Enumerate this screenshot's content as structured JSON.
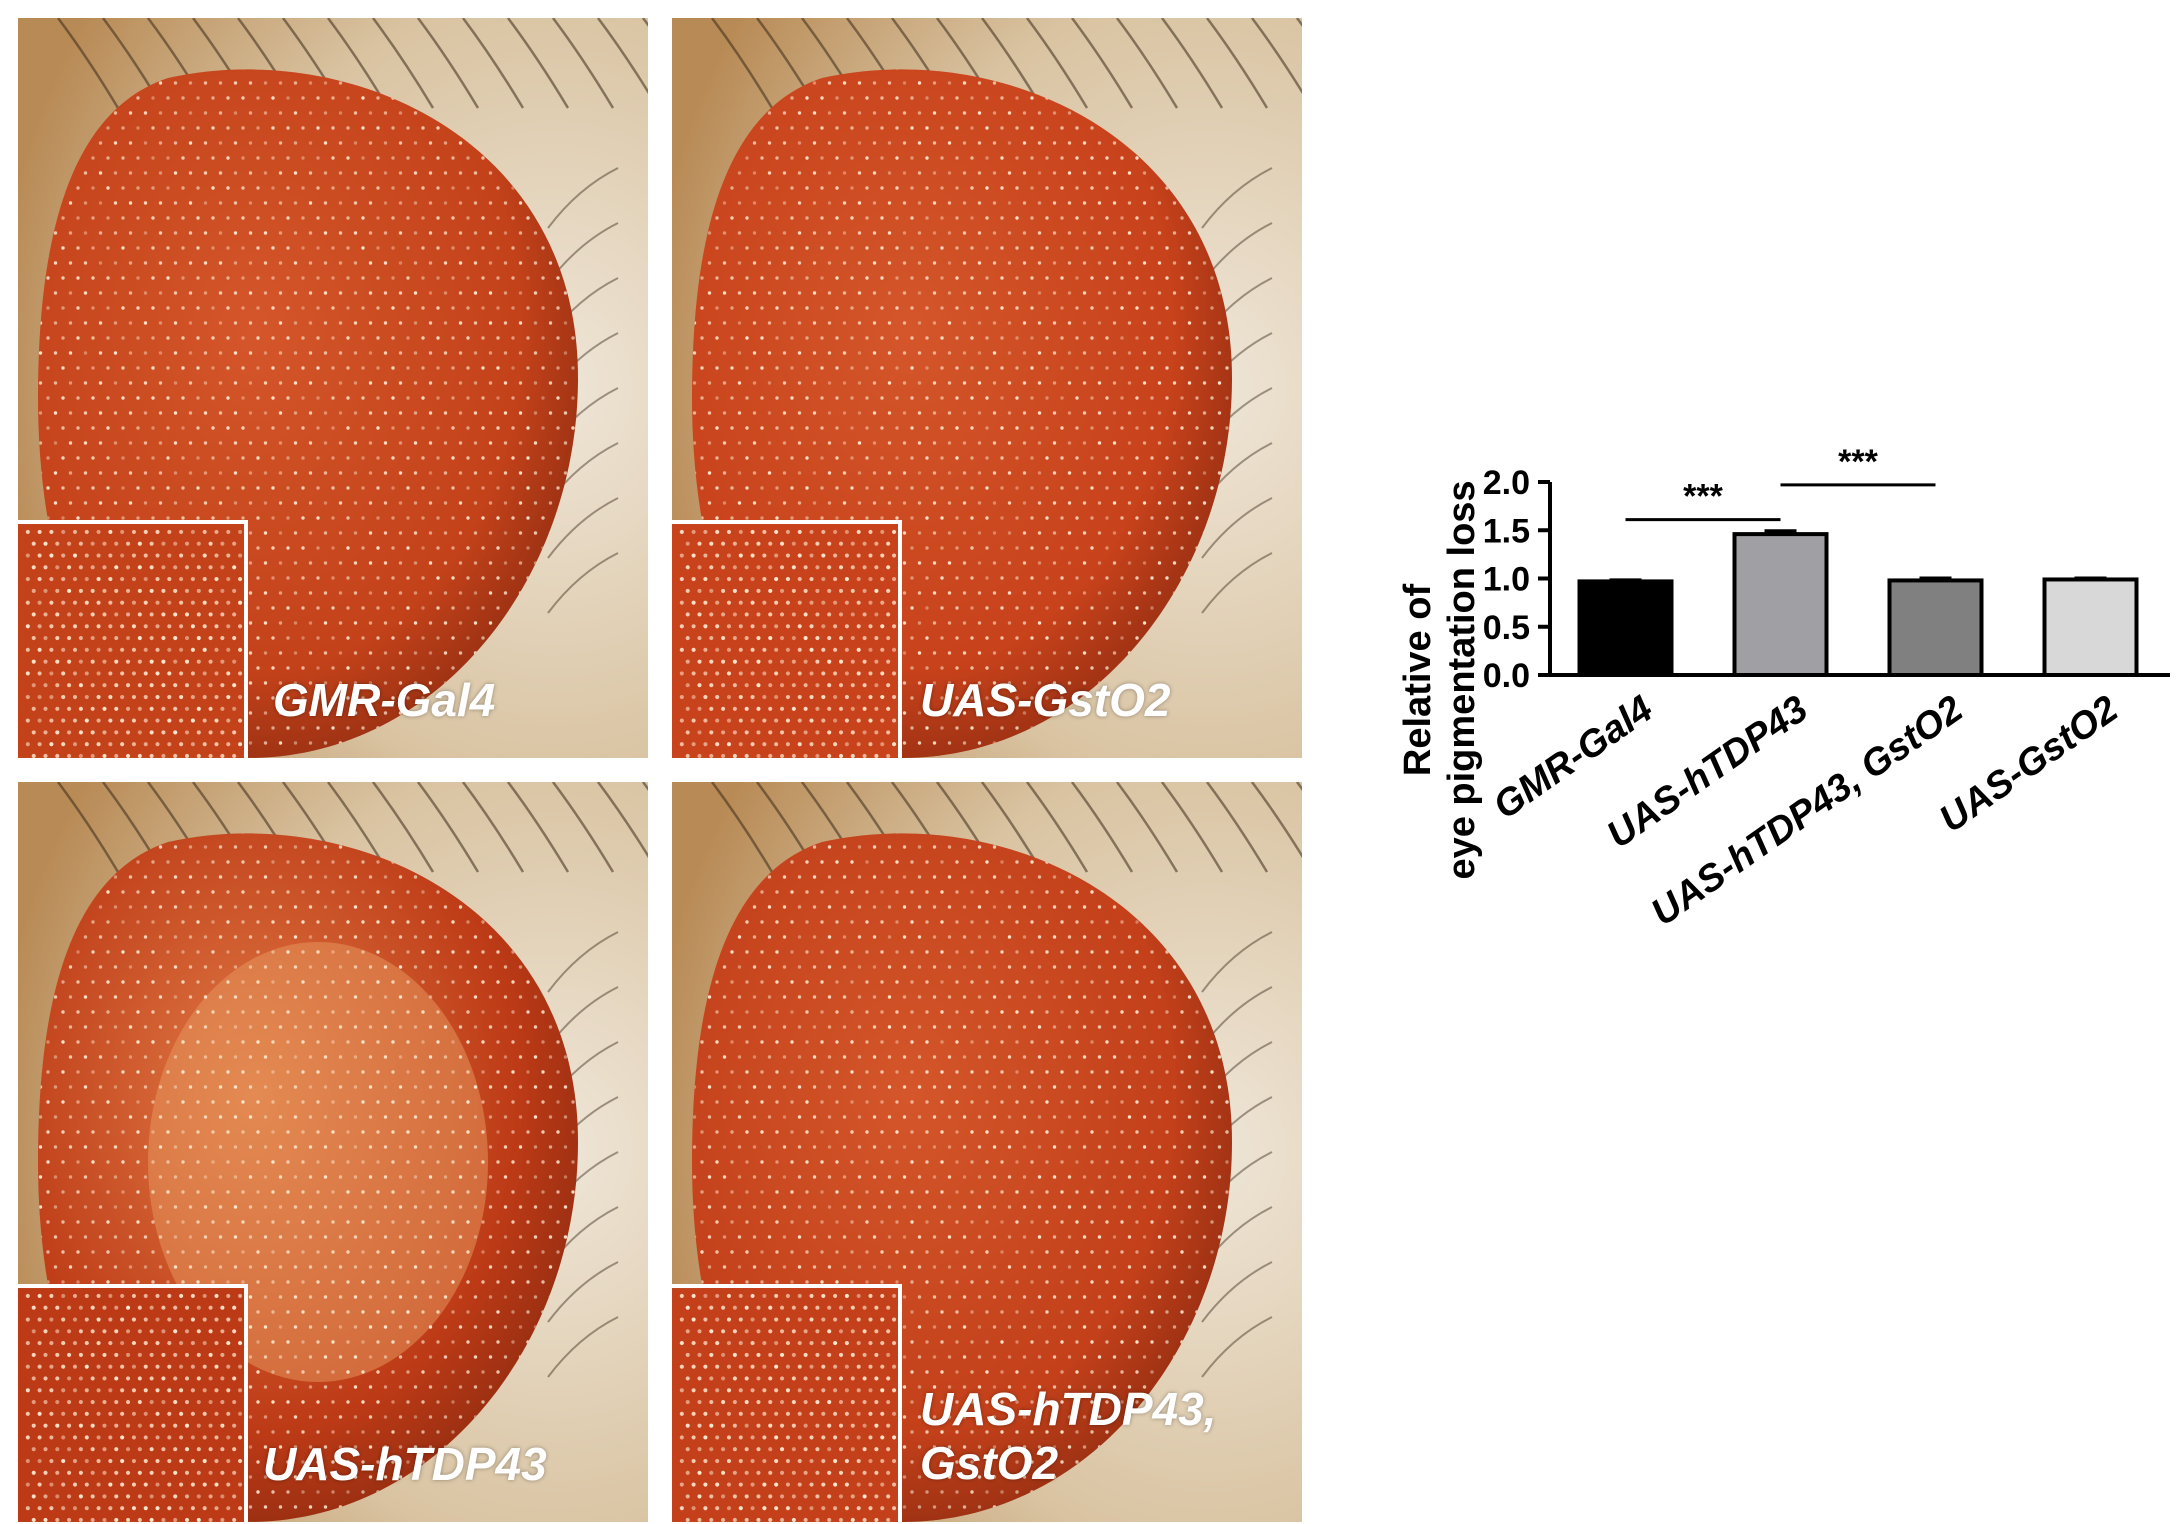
{
  "panels": [
    {
      "label": "GMR-Gal4",
      "tone": "#c4421a",
      "pale": false
    },
    {
      "label": "UAS-GstO2",
      "tone": "#c8421b",
      "pale": false
    },
    {
      "label": "UAS-hTDP43",
      "tone": "#bd3a16",
      "pale": true
    },
    {
      "label": "UAS-hTDP43,\nGstO2",
      "tone": "#c3401a",
      "pale": false
    }
  ],
  "chart_data": {
    "type": "bar",
    "categories": [
      "GMR-Gal4",
      "UAS-hTDP43",
      "UAS-hTDP43, GstO2",
      "UAS-GstO2"
    ],
    "values": [
      0.97,
      1.46,
      0.98,
      0.99
    ],
    "errors": [
      0.01,
      0.03,
      0.02,
      0.01
    ],
    "bar_colors": [
      "#000000",
      "#a0a0a4",
      "#808080",
      "#d8d8d8"
    ],
    "ylabel_line1": "Relative of",
    "ylabel_line2": "eye pigmentation loss",
    "ylim": [
      0,
      2.0
    ],
    "yticks": [
      "0.0",
      "0.5",
      "1.0",
      "1.5",
      "2.0"
    ],
    "significance": [
      {
        "from": 0,
        "to": 1,
        "label": "***"
      },
      {
        "from": 1,
        "to": 2,
        "label": "***"
      }
    ],
    "grid": false,
    "legend": "none"
  }
}
